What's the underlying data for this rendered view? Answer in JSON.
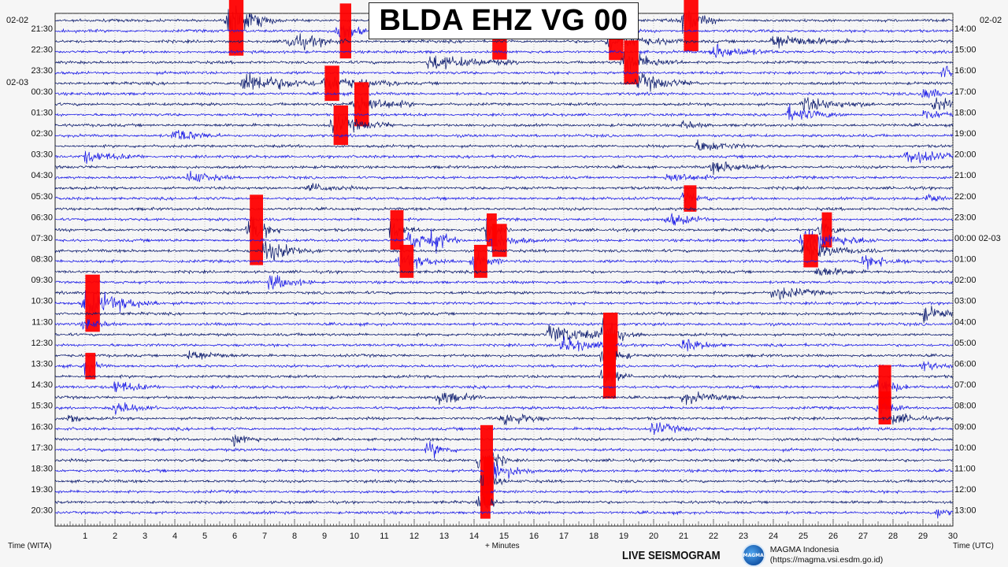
{
  "title": "BLDA EHZ VG 00",
  "left_date_top": "02-02",
  "left_date_second": "02-03",
  "right_date_top": "02-02",
  "left_axis_title": "Time (WITA)",
  "right_axis_title": "Time (UTC)",
  "x_axis_title": "+ Minutes",
  "branding": {
    "live": "LIVE SEISMOGRAM",
    "logo_text": "MAGMA",
    "org": "MAGMA Indonesia",
    "url": "(https://magma.vsi.esdm.go.id)"
  },
  "colors": {
    "dark_trace": "#0b1a6e",
    "blue_trace": "#1a1ae6",
    "clipped": "#ff0000",
    "grid": "#9a9a9a",
    "background": "#f6f6f6"
  },
  "chart_data": {
    "type": "helicorder",
    "x_range": [
      0,
      30
    ],
    "x_ticks": [
      1,
      2,
      3,
      4,
      5,
      6,
      7,
      8,
      9,
      10,
      11,
      12,
      13,
      14,
      15,
      16,
      17,
      18,
      19,
      20,
      21,
      22,
      23,
      24,
      25,
      26,
      27,
      28,
      29,
      30
    ],
    "trace_count": 48,
    "minutes_per_trace": 30,
    "left_hour_labels": [
      "21:30",
      "22:30",
      "23:30",
      "00:30",
      "01:30",
      "02:30",
      "03:30",
      "04:30",
      "05:30",
      "06:30",
      "07:30",
      "08:30",
      "09:30",
      "10:30",
      "11:30",
      "12:30",
      "13:30",
      "14:30",
      "15:30",
      "16:30",
      "17:30",
      "18:30",
      "19:30",
      "20:30"
    ],
    "right_hour_labels": [
      "14:00",
      "15:00",
      "16:00",
      "17:00",
      "18:00",
      "19:00",
      "20:00",
      "21:00",
      "22:00",
      "23:00",
      "00:00 02-03",
      "01:00",
      "02:00",
      "03:00",
      "04:00",
      "05:00",
      "06:00",
      "07:00",
      "08:00",
      "09:00",
      "10:00",
      "11:00",
      "12:00",
      "13:00"
    ],
    "events": [
      {
        "trace": 0,
        "minute": 5.8,
        "width": 1.6,
        "amp": 3.2,
        "clipped": true
      },
      {
        "trace": 0,
        "minute": 21.0,
        "width": 1.2,
        "amp": 2.8,
        "clipped": true
      },
      {
        "trace": 1,
        "minute": 9.5,
        "width": 0.9,
        "amp": 2.5,
        "clipped": true
      },
      {
        "trace": 1,
        "minute": 14.6,
        "width": 3.0,
        "amp": 2.6,
        "clipped": true
      },
      {
        "trace": 2,
        "minute": 7.8,
        "width": 2.0,
        "amp": 1.6,
        "clipped": false
      },
      {
        "trace": 2,
        "minute": 24.0,
        "width": 2.5,
        "amp": 1.5,
        "clipped": false
      },
      {
        "trace": 2,
        "minute": 18.5,
        "width": 2.5,
        "amp": 1.7,
        "clipped": true
      },
      {
        "trace": 3,
        "minute": 22.0,
        "width": 2.0,
        "amp": 1.4,
        "clipped": false
      },
      {
        "trace": 4,
        "minute": 12.5,
        "width": 3.0,
        "amp": 1.4,
        "clipped": false
      },
      {
        "trace": 4,
        "minute": 19.0,
        "width": 2.0,
        "amp": 2.0,
        "clipped": true
      },
      {
        "trace": 5,
        "minute": 29.7,
        "width": 0.8,
        "amp": 1.2,
        "clipped": false
      },
      {
        "trace": 6,
        "minute": 6.3,
        "width": 2.5,
        "amp": 2.2,
        "clipped": false
      },
      {
        "trace": 6,
        "minute": 9.0,
        "width": 2.5,
        "amp": 1.6,
        "clipped": true
      },
      {
        "trace": 6,
        "minute": 19.5,
        "width": 2.0,
        "amp": 1.6,
        "clipped": false
      },
      {
        "trace": 7,
        "minute": 29.0,
        "width": 1.0,
        "amp": 1.4,
        "clipped": false
      },
      {
        "trace": 8,
        "minute": 10.0,
        "width": 2.0,
        "amp": 2.0,
        "clipped": true
      },
      {
        "trace": 8,
        "minute": 25.0,
        "width": 2.5,
        "amp": 1.2,
        "clipped": false
      },
      {
        "trace": 8,
        "minute": 29.4,
        "width": 1.0,
        "amp": 1.5,
        "clipped": false
      },
      {
        "trace": 9,
        "minute": 24.5,
        "width": 2.0,
        "amp": 1.3,
        "clipped": false
      },
      {
        "trace": 9,
        "minute": 29.0,
        "width": 1.5,
        "amp": 1.0,
        "clipped": false
      },
      {
        "trace": 10,
        "minute": 9.3,
        "width": 2.0,
        "amp": 1.8,
        "clipped": true
      },
      {
        "trace": 10,
        "minute": 21.0,
        "width": 1.0,
        "amp": 0.8,
        "clipped": false
      },
      {
        "trace": 11,
        "minute": 4.0,
        "width": 1.5,
        "amp": 1.3,
        "clipped": false
      },
      {
        "trace": 12,
        "minute": 21.5,
        "width": 2.0,
        "amp": 1.1,
        "clipped": false
      },
      {
        "trace": 13,
        "minute": 1.0,
        "width": 2.0,
        "amp": 1.0,
        "clipped": false
      },
      {
        "trace": 13,
        "minute": 28.5,
        "width": 2.0,
        "amp": 1.4,
        "clipped": false
      },
      {
        "trace": 14,
        "minute": 22.0,
        "width": 2.0,
        "amp": 1.1,
        "clipped": false
      },
      {
        "trace": 15,
        "minute": 4.5,
        "width": 1.5,
        "amp": 1.2,
        "clipped": false
      },
      {
        "trace": 15,
        "minute": 20.5,
        "width": 1.5,
        "amp": 1.0,
        "clipped": false
      },
      {
        "trace": 16,
        "minute": 8.5,
        "width": 1.5,
        "amp": 0.9,
        "clipped": false
      },
      {
        "trace": 17,
        "minute": 21.0,
        "width": 1.0,
        "amp": 1.2,
        "clipped": true
      },
      {
        "trace": 17,
        "minute": 29.2,
        "width": 0.6,
        "amp": 1.0,
        "clipped": false
      },
      {
        "trace": 19,
        "minute": 20.5,
        "width": 1.5,
        "amp": 1.2,
        "clipped": false
      },
      {
        "trace": 20,
        "minute": 6.5,
        "width": 1.0,
        "amp": 3.2,
        "clipped": true
      },
      {
        "trace": 20,
        "minute": 11.2,
        "width": 1.0,
        "amp": 1.8,
        "clipped": true
      },
      {
        "trace": 20,
        "minute": 14.4,
        "width": 0.8,
        "amp": 1.5,
        "clipped": true
      },
      {
        "trace": 20,
        "minute": 25.6,
        "width": 0.8,
        "amp": 1.6,
        "clipped": true
      },
      {
        "trace": 21,
        "minute": 11.8,
        "width": 1.5,
        "amp": 1.8,
        "clipped": false
      },
      {
        "trace": 21,
        "minute": 12.6,
        "width": 1.0,
        "amp": 1.8,
        "clipped": false
      },
      {
        "trace": 21,
        "minute": 14.6,
        "width": 1.5,
        "amp": 1.5,
        "clipped": true
      },
      {
        "trace": 21,
        "minute": 25.0,
        "width": 2.5,
        "amp": 2.0,
        "clipped": false
      },
      {
        "trace": 22,
        "minute": 7.0,
        "width": 2.0,
        "amp": 1.8,
        "clipped": false
      },
      {
        "trace": 22,
        "minute": 25.0,
        "width": 2.5,
        "amp": 1.5,
        "clipped": true
      },
      {
        "trace": 23,
        "minute": 11.5,
        "width": 2.0,
        "amp": 1.5,
        "clipped": true
      },
      {
        "trace": 23,
        "minute": 14.0,
        "width": 1.0,
        "amp": 1.5,
        "clipped": true
      },
      {
        "trace": 23,
        "minute": 27.0,
        "width": 2.0,
        "amp": 1.1,
        "clipped": false
      },
      {
        "trace": 24,
        "minute": 25.5,
        "width": 1.5,
        "amp": 1.0,
        "clipped": false
      },
      {
        "trace": 25,
        "minute": 7.2,
        "width": 1.5,
        "amp": 1.4,
        "clipped": false
      },
      {
        "trace": 26,
        "minute": 24.0,
        "width": 2.0,
        "amp": 1.3,
        "clipped": false
      },
      {
        "trace": 27,
        "minute": 1.0,
        "width": 2.5,
        "amp": 2.6,
        "clipped": true
      },
      {
        "trace": 28,
        "minute": 29.0,
        "width": 1.5,
        "amp": 1.4,
        "clipped": false
      },
      {
        "trace": 29,
        "minute": 1.0,
        "width": 1.0,
        "amp": 1.0,
        "clipped": false
      },
      {
        "trace": 30,
        "minute": 16.5,
        "width": 2.5,
        "amp": 1.8,
        "clipped": false
      },
      {
        "trace": 30,
        "minute": 18.3,
        "width": 1.5,
        "amp": 2.0,
        "clipped": true
      },
      {
        "trace": 31,
        "minute": 17.0,
        "width": 2.0,
        "amp": 1.4,
        "clipped": false
      },
      {
        "trace": 31,
        "minute": 21.0,
        "width": 1.5,
        "amp": 1.1,
        "clipped": false
      },
      {
        "trace": 32,
        "minute": 4.5,
        "width": 1.5,
        "amp": 1.1,
        "clipped": false
      },
      {
        "trace": 32,
        "minute": 18.3,
        "width": 1.0,
        "amp": 2.0,
        "clipped": true
      },
      {
        "trace": 33,
        "minute": 1.0,
        "width": 0.8,
        "amp": 1.2,
        "clipped": true
      },
      {
        "trace": 33,
        "minute": 29.0,
        "width": 1.0,
        "amp": 1.1,
        "clipped": false
      },
      {
        "trace": 34,
        "minute": 18.3,
        "width": 1.0,
        "amp": 2.0,
        "clipped": true
      },
      {
        "trace": 35,
        "minute": 2.0,
        "width": 1.5,
        "amp": 1.2,
        "clipped": false
      },
      {
        "trace": 35,
        "minute": 27.5,
        "width": 1.0,
        "amp": 2.0,
        "clipped": true
      },
      {
        "trace": 36,
        "minute": 12.8,
        "width": 1.5,
        "amp": 1.3,
        "clipped": false
      },
      {
        "trace": 36,
        "minute": 21.0,
        "width": 2.0,
        "amp": 1.0,
        "clipped": false
      },
      {
        "trace": 37,
        "minute": 2.0,
        "width": 1.5,
        "amp": 1.2,
        "clipped": false
      },
      {
        "trace": 37,
        "minute": 27.5,
        "width": 1.0,
        "amp": 1.5,
        "clipped": true
      },
      {
        "trace": 38,
        "minute": 0.5,
        "width": 0.5,
        "amp": 1.2,
        "clipped": false
      },
      {
        "trace": 38,
        "minute": 15.0,
        "width": 1.5,
        "amp": 1.4,
        "clipped": false
      },
      {
        "trace": 38,
        "minute": 28.0,
        "width": 1.5,
        "amp": 1.0,
        "clipped": false
      },
      {
        "trace": 39,
        "minute": 20.0,
        "width": 1.5,
        "amp": 1.2,
        "clipped": false
      },
      {
        "trace": 40,
        "minute": 6.0,
        "width": 1.0,
        "amp": 1.1,
        "clipped": false
      },
      {
        "trace": 41,
        "minute": 12.5,
        "width": 1.0,
        "amp": 1.6,
        "clipped": false
      },
      {
        "trace": 42,
        "minute": 14.2,
        "width": 1.0,
        "amp": 3.2,
        "clipped": true
      },
      {
        "trace": 43,
        "minute": 14.6,
        "width": 1.5,
        "amp": 2.0,
        "clipped": false
      },
      {
        "trace": 44,
        "minute": 14.3,
        "width": 0.8,
        "amp": 2.2,
        "clipped": true
      },
      {
        "trace": 46,
        "minute": 14.2,
        "width": 0.8,
        "amp": 1.5,
        "clipped": true
      },
      {
        "trace": 47,
        "minute": 29.5,
        "width": 0.6,
        "amp": 1.0,
        "clipped": false
      }
    ]
  }
}
